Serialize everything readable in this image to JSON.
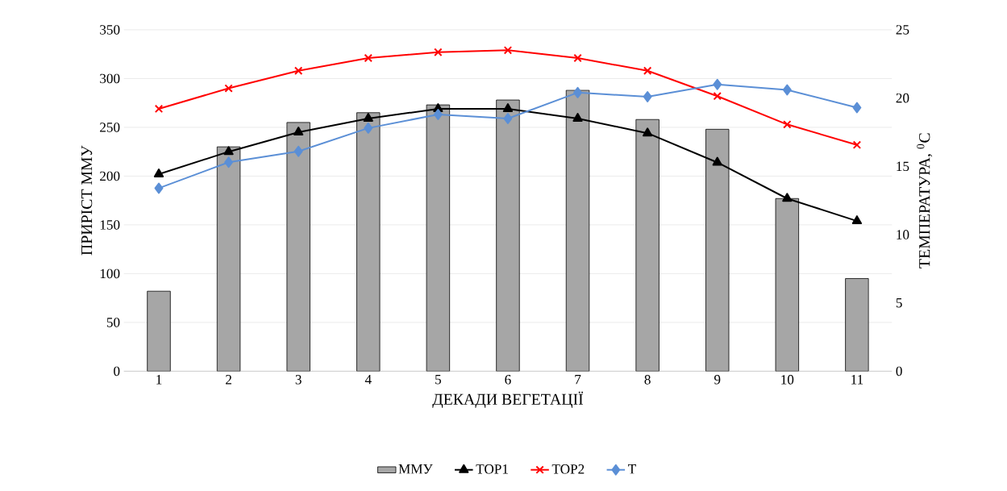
{
  "chart_data": {
    "type": "bar",
    "xlabel": "ДЕКАДИ ВЕГЕТАЦІЇ",
    "ylabel": "ПРИРІСТ ММУ",
    "y2label": "ТЕМПЕРАТУРА, $^{0}$С",
    "categories": [
      "1",
      "2",
      "3",
      "4",
      "5",
      "6",
      "7",
      "8",
      "9",
      "10",
      "11"
    ],
    "series": [
      {
        "name": "ММУ",
        "color": "#a6a6a6",
        "values": [
          82,
          230,
          255,
          265,
          273,
          278,
          288,
          258,
          248,
          177,
          95
        ]
      },
      {
        "name": "ТОР1",
        "type": "line",
        "color": "#000000",
        "marker": "triangle",
        "values": [
          202,
          225,
          245,
          259,
          269,
          269,
          259,
          244,
          214,
          177,
          154
        ]
      },
      {
        "name": "ТОР2",
        "type": "line",
        "color": "#ff0000",
        "marker": "cross",
        "values": [
          269,
          290,
          308,
          321,
          327,
          329,
          321,
          308,
          282,
          253,
          232
        ]
      },
      {
        "name": "Т",
        "type": "line",
        "axis": "y2",
        "color": "#5b8fd6",
        "marker": "diamond",
        "values": [
          13.4,
          15.3,
          16.1,
          17.8,
          18.8,
          18.5,
          20.4,
          20.1,
          21.0,
          20.6,
          19.3
        ]
      }
    ],
    "ylim": [
      0,
      350
    ],
    "yticks": [
      0,
      50,
      100,
      150,
      200,
      250,
      300,
      350
    ],
    "y2lim": [
      0,
      25
    ],
    "y2ticks": [
      0,
      5,
      10,
      15,
      20,
      25
    ],
    "grid": "y",
    "legend": "bottom"
  }
}
